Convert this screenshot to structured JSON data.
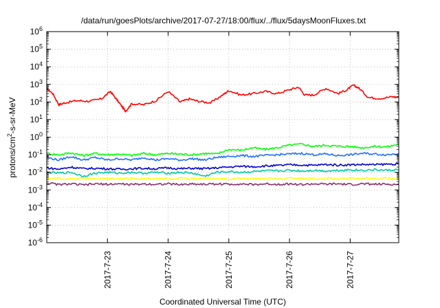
{
  "chart_data": {
    "type": "line",
    "title": "/data/run/goesPlots/archive/2017-07-27/18:00/flux/../flux/5daysMoonFluxes.txt",
    "xlabel": "Coordinated Universal Time (UTC)",
    "ylabel": {
      "pre": "protons/cm",
      "sup": "2",
      "post": "-s-sr-MeV"
    },
    "y_scale": "log",
    "ylim": [
      1e-06,
      1000000.0
    ],
    "y_ticks": [
      {
        "value": 1000000.0,
        "base": "10",
        "exp": "6"
      },
      {
        "value": 100000.0,
        "base": "10",
        "exp": "5"
      },
      {
        "value": 10000.0,
        "base": "10",
        "exp": "4"
      },
      {
        "value": 1000.0,
        "base": "10",
        "exp": "3"
      },
      {
        "value": 100.0,
        "base": "10",
        "exp": "2"
      },
      {
        "value": 10.0,
        "base": "10",
        "exp": "1"
      },
      {
        "value": 1.0,
        "base": "10",
        "exp": "0"
      },
      {
        "value": 0.1,
        "base": "10",
        "exp": "-1"
      },
      {
        "value": 0.01,
        "base": "10",
        "exp": "-2"
      },
      {
        "value": 0.001,
        "base": "10",
        "exp": "-3"
      },
      {
        "value": 0.0001,
        "base": "10",
        "exp": "-4"
      },
      {
        "value": 1e-05,
        "base": "10",
        "exp": "-5"
      },
      {
        "value": 1e-06,
        "base": "10",
        "exp": "-6"
      }
    ],
    "xlim": [
      22.0,
      27.8
    ],
    "x_ticks": [
      {
        "value": 23,
        "label": "2017-7-23"
      },
      {
        "value": 24,
        "label": "2017-7-24"
      },
      {
        "value": 25,
        "label": "2017-7-25"
      },
      {
        "value": 26,
        "label": "2017-7-26"
      },
      {
        "value": 27,
        "label": "2017-7-27"
      }
    ],
    "grid": true,
    "series": [
      {
        "color": "#ff0000",
        "x": [
          22.0,
          22.1,
          22.2,
          22.3,
          22.5,
          22.7,
          22.9,
          23.05,
          23.15,
          23.25,
          23.3,
          23.4,
          23.6,
          23.8,
          24.0,
          24.2,
          24.35,
          24.5,
          24.7,
          24.9,
          25.0,
          25.2,
          25.4,
          25.6,
          25.8,
          26.0,
          26.15,
          26.25,
          26.4,
          26.6,
          26.8,
          26.95,
          27.05,
          27.15,
          27.3,
          27.5,
          27.7,
          27.8
        ],
        "y": [
          600,
          300,
          70,
          90,
          120,
          110,
          150,
          400,
          140,
          50,
          30,
          80,
          70,
          120,
          400,
          100,
          150,
          110,
          90,
          250,
          450,
          250,
          300,
          400,
          300,
          500,
          700,
          250,
          250,
          600,
          300,
          500,
          900,
          600,
          180,
          160,
          200,
          180
        ]
      },
      {
        "color": "#00ff00",
        "x": [
          22.0,
          22.2,
          22.4,
          22.6,
          22.8,
          23.0,
          23.2,
          23.4,
          23.6,
          23.8,
          24.0,
          24.2,
          24.4,
          24.6,
          24.8,
          25.0,
          25.2,
          25.4,
          25.6,
          25.8,
          26.0,
          26.2,
          26.4,
          26.6,
          26.8,
          27.0,
          27.2,
          27.4,
          27.6,
          27.8
        ],
        "y": [
          0.12,
          0.1,
          0.13,
          0.09,
          0.12,
          0.1,
          0.11,
          0.09,
          0.12,
          0.1,
          0.12,
          0.11,
          0.1,
          0.12,
          0.11,
          0.2,
          0.18,
          0.25,
          0.2,
          0.25,
          0.35,
          0.4,
          0.3,
          0.35,
          0.3,
          0.3,
          0.25,
          0.3,
          0.28,
          0.4
        ]
      },
      {
        "color": "#1e6fff",
        "x": [
          22.0,
          22.2,
          22.4,
          22.6,
          22.8,
          23.0,
          23.2,
          23.4,
          23.6,
          23.8,
          24.0,
          24.2,
          24.4,
          24.6,
          24.8,
          25.0,
          25.2,
          25.4,
          25.6,
          25.8,
          26.0,
          26.2,
          26.4,
          26.6,
          26.8,
          27.0,
          27.2,
          27.4,
          27.6,
          27.8
        ],
        "y": [
          0.07,
          0.05,
          0.08,
          0.05,
          0.07,
          0.05,
          0.06,
          0.05,
          0.07,
          0.05,
          0.06,
          0.05,
          0.06,
          0.05,
          0.07,
          0.08,
          0.09,
          0.08,
          0.09,
          0.1,
          0.11,
          0.12,
          0.1,
          0.11,
          0.09,
          0.1,
          0.12,
          0.11,
          0.1,
          0.12
        ]
      },
      {
        "color": "#0000cd",
        "x": [
          22.0,
          22.2,
          22.4,
          22.6,
          22.8,
          23.0,
          23.2,
          23.4,
          23.6,
          23.8,
          24.0,
          24.2,
          24.4,
          24.6,
          24.8,
          25.0,
          25.2,
          25.4,
          25.6,
          25.8,
          26.0,
          26.2,
          26.4,
          26.6,
          26.8,
          27.0,
          27.2,
          27.4,
          27.6,
          27.8
        ],
        "y": [
          0.018,
          0.015,
          0.02,
          0.016,
          0.017,
          0.016,
          0.015,
          0.016,
          0.017,
          0.016,
          0.018,
          0.016,
          0.017,
          0.016,
          0.018,
          0.02,
          0.022,
          0.021,
          0.023,
          0.024,
          0.027,
          0.026,
          0.025,
          0.028,
          0.026,
          0.027,
          0.028,
          0.027,
          0.029,
          0.03
        ]
      },
      {
        "color": "#00c8a0",
        "x": [
          22.0,
          22.2,
          22.4,
          22.6,
          22.8,
          23.0,
          23.2,
          23.4,
          23.6,
          23.8,
          24.0,
          24.2,
          24.4,
          24.6,
          24.8,
          25.0,
          25.2,
          25.4,
          25.6,
          25.8,
          26.0,
          26.2,
          26.4,
          26.6,
          26.8,
          27.0,
          27.2,
          27.4,
          27.6,
          27.8
        ],
        "y": [
          0.01,
          0.009,
          0.01,
          0.006,
          0.009,
          0.01,
          0.009,
          0.01,
          0.009,
          0.01,
          0.009,
          0.01,
          0.009,
          0.006,
          0.01,
          0.011,
          0.01,
          0.011,
          0.012,
          0.012,
          0.013,
          0.012,
          0.013,
          0.012,
          0.013,
          0.014,
          0.013,
          0.014,
          0.013,
          0.014
        ]
      },
      {
        "color": "#ffff00",
        "x": [
          22.0,
          22.4,
          22.8,
          23.2,
          23.6,
          24.0,
          24.4,
          24.8,
          25.2,
          25.6,
          26.0,
          26.4,
          26.8,
          27.2,
          27.6,
          27.8
        ],
        "y": [
          0.0045,
          0.0044,
          0.0045,
          0.0044,
          0.0045,
          0.0044,
          0.0045,
          0.0044,
          0.0045,
          0.0044,
          0.0045,
          0.0044,
          0.0045,
          0.0044,
          0.0045,
          0.0045
        ]
      },
      {
        "color": "#8b2e6e",
        "x": [
          22.0,
          22.2,
          22.4,
          22.6,
          22.8,
          23.0,
          23.2,
          23.4,
          23.6,
          23.8,
          24.0,
          24.2,
          24.4,
          24.6,
          24.8,
          25.0,
          25.2,
          25.4,
          25.6,
          25.8,
          26.0,
          26.2,
          26.4,
          26.6,
          26.8,
          27.0,
          27.2,
          27.4,
          27.6,
          27.8
        ],
        "y": [
          0.0025,
          0.002,
          0.0022,
          0.0019,
          0.0022,
          0.0021,
          0.0022,
          0.002,
          0.0022,
          0.0021,
          0.0022,
          0.002,
          0.0022,
          0.0021,
          0.0022,
          0.0021,
          0.0022,
          0.002,
          0.0022,
          0.0021,
          0.0022,
          0.002,
          0.0022,
          0.0021,
          0.0022,
          0.002,
          0.0022,
          0.0021,
          0.0021,
          0.002
        ]
      }
    ]
  }
}
